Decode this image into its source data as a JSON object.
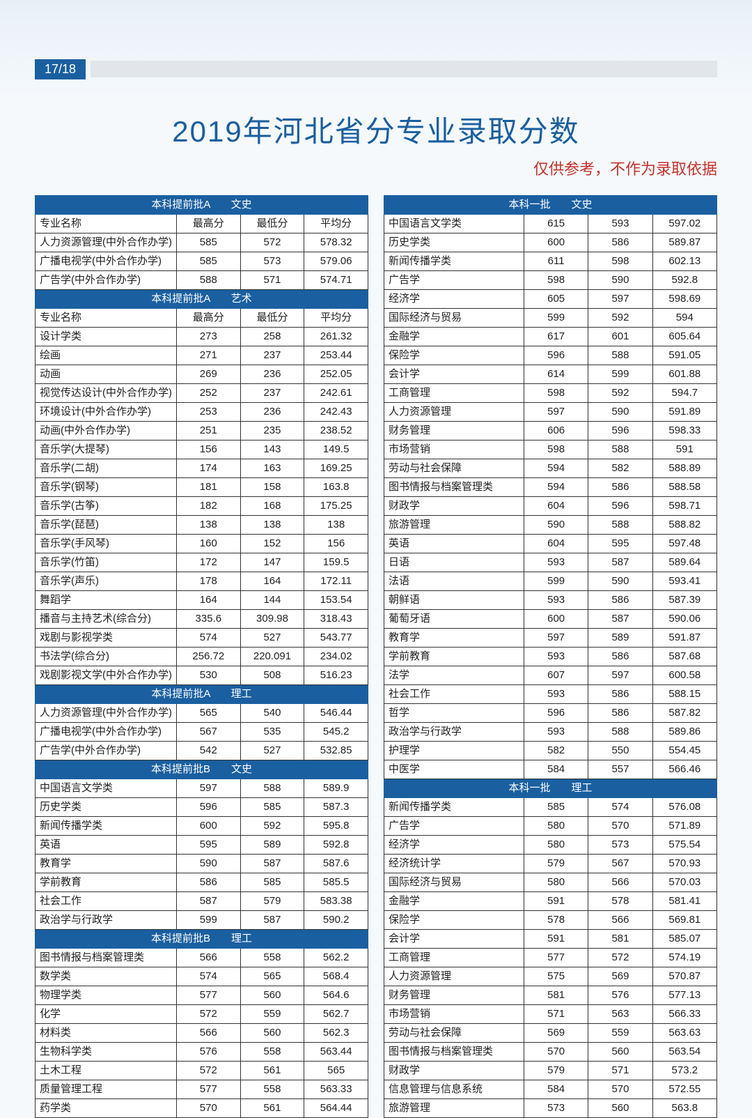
{
  "pageNumber": "17/18",
  "title": "2019年河北省分专业录取分数",
  "subtitle": "仅供参考，不作为录取依据",
  "colors": {
    "primary": "#1a5fa0",
    "accent": "#c8302a",
    "background": "#f5f9fc",
    "border": "#333333",
    "cellBg": "#ffffff"
  },
  "columnHeaders": [
    "专业名称",
    "最高分",
    "最低分",
    "平均分"
  ],
  "leftColumn": [
    {
      "section": "本科提前批A　　文史",
      "showHeader": true,
      "rows": [
        [
          "人力资源管理(中外合作办学)",
          "585",
          "572",
          "578.32"
        ],
        [
          "广播电视学(中外合作办学)",
          "585",
          "573",
          "579.06"
        ],
        [
          "广告学(中外合作办学)",
          "588",
          "571",
          "574.71"
        ]
      ]
    },
    {
      "section": "本科提前批A　　艺术",
      "showHeader": true,
      "rows": [
        [
          "设计学类",
          "273",
          "258",
          "261.32"
        ],
        [
          "绘画",
          "271",
          "237",
          "253.44"
        ],
        [
          "动画",
          "269",
          "236",
          "252.05"
        ],
        [
          "视觉传达设计(中外合作办学)",
          "252",
          "237",
          "242.61"
        ],
        [
          "环境设计(中外合作办学)",
          "253",
          "236",
          "242.43"
        ],
        [
          "动画(中外合作办学)",
          "251",
          "235",
          "238.52"
        ],
        [
          "音乐学(大提琴)",
          "156",
          "143",
          "149.5"
        ],
        [
          "音乐学(二胡)",
          "174",
          "163",
          "169.25"
        ],
        [
          "音乐学(钢琴)",
          "181",
          "158",
          "163.8"
        ],
        [
          "音乐学(古筝)",
          "182",
          "168",
          "175.25"
        ],
        [
          "音乐学(琵琶)",
          "138",
          "138",
          "138"
        ],
        [
          "音乐学(手风琴)",
          "160",
          "152",
          "156"
        ],
        [
          "音乐学(竹笛)",
          "172",
          "147",
          "159.5"
        ],
        [
          "音乐学(声乐)",
          "178",
          "164",
          "172.11"
        ],
        [
          "舞蹈学",
          "164",
          "144",
          "153.54"
        ],
        [
          "播音与主持艺术(综合分)",
          "335.6",
          "309.98",
          "318.43"
        ],
        [
          "戏剧与影视学类",
          "574",
          "527",
          "543.77"
        ],
        [
          "书法学(综合分)",
          "256.72",
          "220.091",
          "234.02"
        ],
        [
          "戏剧影视文学(中外合作办学)",
          "530",
          "508",
          "516.23"
        ]
      ]
    },
    {
      "section": "本科提前批A　　理工",
      "showHeader": false,
      "rows": [
        [
          "人力资源管理(中外合作办学)",
          "565",
          "540",
          "546.44"
        ],
        [
          "广播电视学(中外合作办学)",
          "567",
          "535",
          "545.2"
        ],
        [
          "广告学(中外合作办学)",
          "542",
          "527",
          "532.85"
        ]
      ]
    },
    {
      "section": "本科提前批B　　文史",
      "showHeader": false,
      "rows": [
        [
          "中国语言文学类",
          "597",
          "588",
          "589.9"
        ],
        [
          "历史学类",
          "596",
          "585",
          "587.3"
        ],
        [
          "新闻传播学类",
          "600",
          "592",
          "595.8"
        ],
        [
          "英语",
          "595",
          "589",
          "592.8"
        ],
        [
          "教育学",
          "590",
          "587",
          "587.6"
        ],
        [
          "学前教育",
          "586",
          "585",
          "585.5"
        ],
        [
          "社会工作",
          "587",
          "579",
          "583.38"
        ],
        [
          "政治学与行政学",
          "599",
          "587",
          "590.2"
        ]
      ]
    },
    {
      "section": "本科提前批B　　理工",
      "showHeader": false,
      "rows": [
        [
          "图书情报与档案管理类",
          "566",
          "558",
          "562.2"
        ],
        [
          "数学类",
          "574",
          "565",
          "568.4"
        ],
        [
          "物理学类",
          "577",
          "560",
          "564.6"
        ],
        [
          "化学",
          "572",
          "559",
          "562.7"
        ],
        [
          "材料类",
          "566",
          "560",
          "562.3"
        ],
        [
          "生物科学类",
          "576",
          "558",
          "563.44"
        ],
        [
          "土木工程",
          "572",
          "561",
          "565"
        ],
        [
          "质量管理工程",
          "577",
          "558",
          "563.33"
        ],
        [
          "药学类",
          "570",
          "561",
          "564.44"
        ]
      ]
    }
  ],
  "rightColumn": [
    {
      "section": "本科一批　　文史",
      "showHeader": false,
      "rows": [
        [
          "中国语言文学类",
          "615",
          "593",
          "597.02"
        ],
        [
          "历史学类",
          "600",
          "586",
          "589.87"
        ],
        [
          "新闻传播学类",
          "611",
          "598",
          "602.13"
        ],
        [
          "广告学",
          "598",
          "590",
          "592.8"
        ],
        [
          "经济学",
          "605",
          "597",
          "598.69"
        ],
        [
          "国际经济与贸易",
          "599",
          "592",
          "594"
        ],
        [
          "金融学",
          "617",
          "601",
          "605.64"
        ],
        [
          "保险学",
          "596",
          "588",
          "591.05"
        ],
        [
          "会计学",
          "614",
          "599",
          "601.88"
        ],
        [
          "工商管理",
          "598",
          "592",
          "594.7"
        ],
        [
          "人力资源管理",
          "597",
          "590",
          "591.89"
        ],
        [
          "财务管理",
          "606",
          "596",
          "598.33"
        ],
        [
          "市场营销",
          "598",
          "588",
          "591"
        ],
        [
          "劳动与社会保障",
          "594",
          "582",
          "588.89"
        ],
        [
          "图书情报与档案管理类",
          "594",
          "586",
          "588.58"
        ],
        [
          "财政学",
          "604",
          "596",
          "598.71"
        ],
        [
          "旅游管理",
          "590",
          "588",
          "588.82"
        ],
        [
          "英语",
          "604",
          "595",
          "597.48"
        ],
        [
          "日语",
          "593",
          "587",
          "589.64"
        ],
        [
          "法语",
          "599",
          "590",
          "593.41"
        ],
        [
          "朝鲜语",
          "593",
          "586",
          "587.39"
        ],
        [
          "葡萄牙语",
          "600",
          "587",
          "590.06"
        ],
        [
          "教育学",
          "597",
          "589",
          "591.87"
        ],
        [
          "学前教育",
          "593",
          "586",
          "587.68"
        ],
        [
          "法学",
          "607",
          "597",
          "600.58"
        ],
        [
          "社会工作",
          "593",
          "586",
          "588.15"
        ],
        [
          "哲学",
          "596",
          "586",
          "587.82"
        ],
        [
          "政治学与行政学",
          "593",
          "588",
          "589.86"
        ],
        [
          "护理学",
          "582",
          "550",
          "554.45"
        ],
        [
          "中医学",
          "584",
          "557",
          "566.46"
        ]
      ]
    },
    {
      "section": "本科一批　　理工",
      "showHeader": false,
      "rows": [
        [
          "新闻传播学类",
          "585",
          "574",
          "576.08"
        ],
        [
          "广告学",
          "580",
          "570",
          "571.89"
        ],
        [
          "经济学",
          "580",
          "573",
          "575.54"
        ],
        [
          "经济统计学",
          "579",
          "567",
          "570.93"
        ],
        [
          "国际经济与贸易",
          "580",
          "566",
          "570.03"
        ],
        [
          "金融学",
          "591",
          "578",
          "581.41"
        ],
        [
          "保险学",
          "578",
          "566",
          "569.81"
        ],
        [
          "会计学",
          "591",
          "581",
          "585.07"
        ],
        [
          "工商管理",
          "577",
          "572",
          "574.19"
        ],
        [
          "人力资源管理",
          "575",
          "569",
          "570.87"
        ],
        [
          "财务管理",
          "581",
          "576",
          "577.13"
        ],
        [
          "市场营销",
          "571",
          "563",
          "566.33"
        ],
        [
          "劳动与社会保障",
          "569",
          "559",
          "563.63"
        ],
        [
          "图书情报与档案管理类",
          "570",
          "560",
          "563.54"
        ],
        [
          "财政学",
          "579",
          "571",
          "573.2"
        ],
        [
          "信息管理与信息系统",
          "584",
          "570",
          "572.55"
        ],
        [
          "旅游管理",
          "573",
          "560",
          "563.8"
        ]
      ]
    }
  ]
}
